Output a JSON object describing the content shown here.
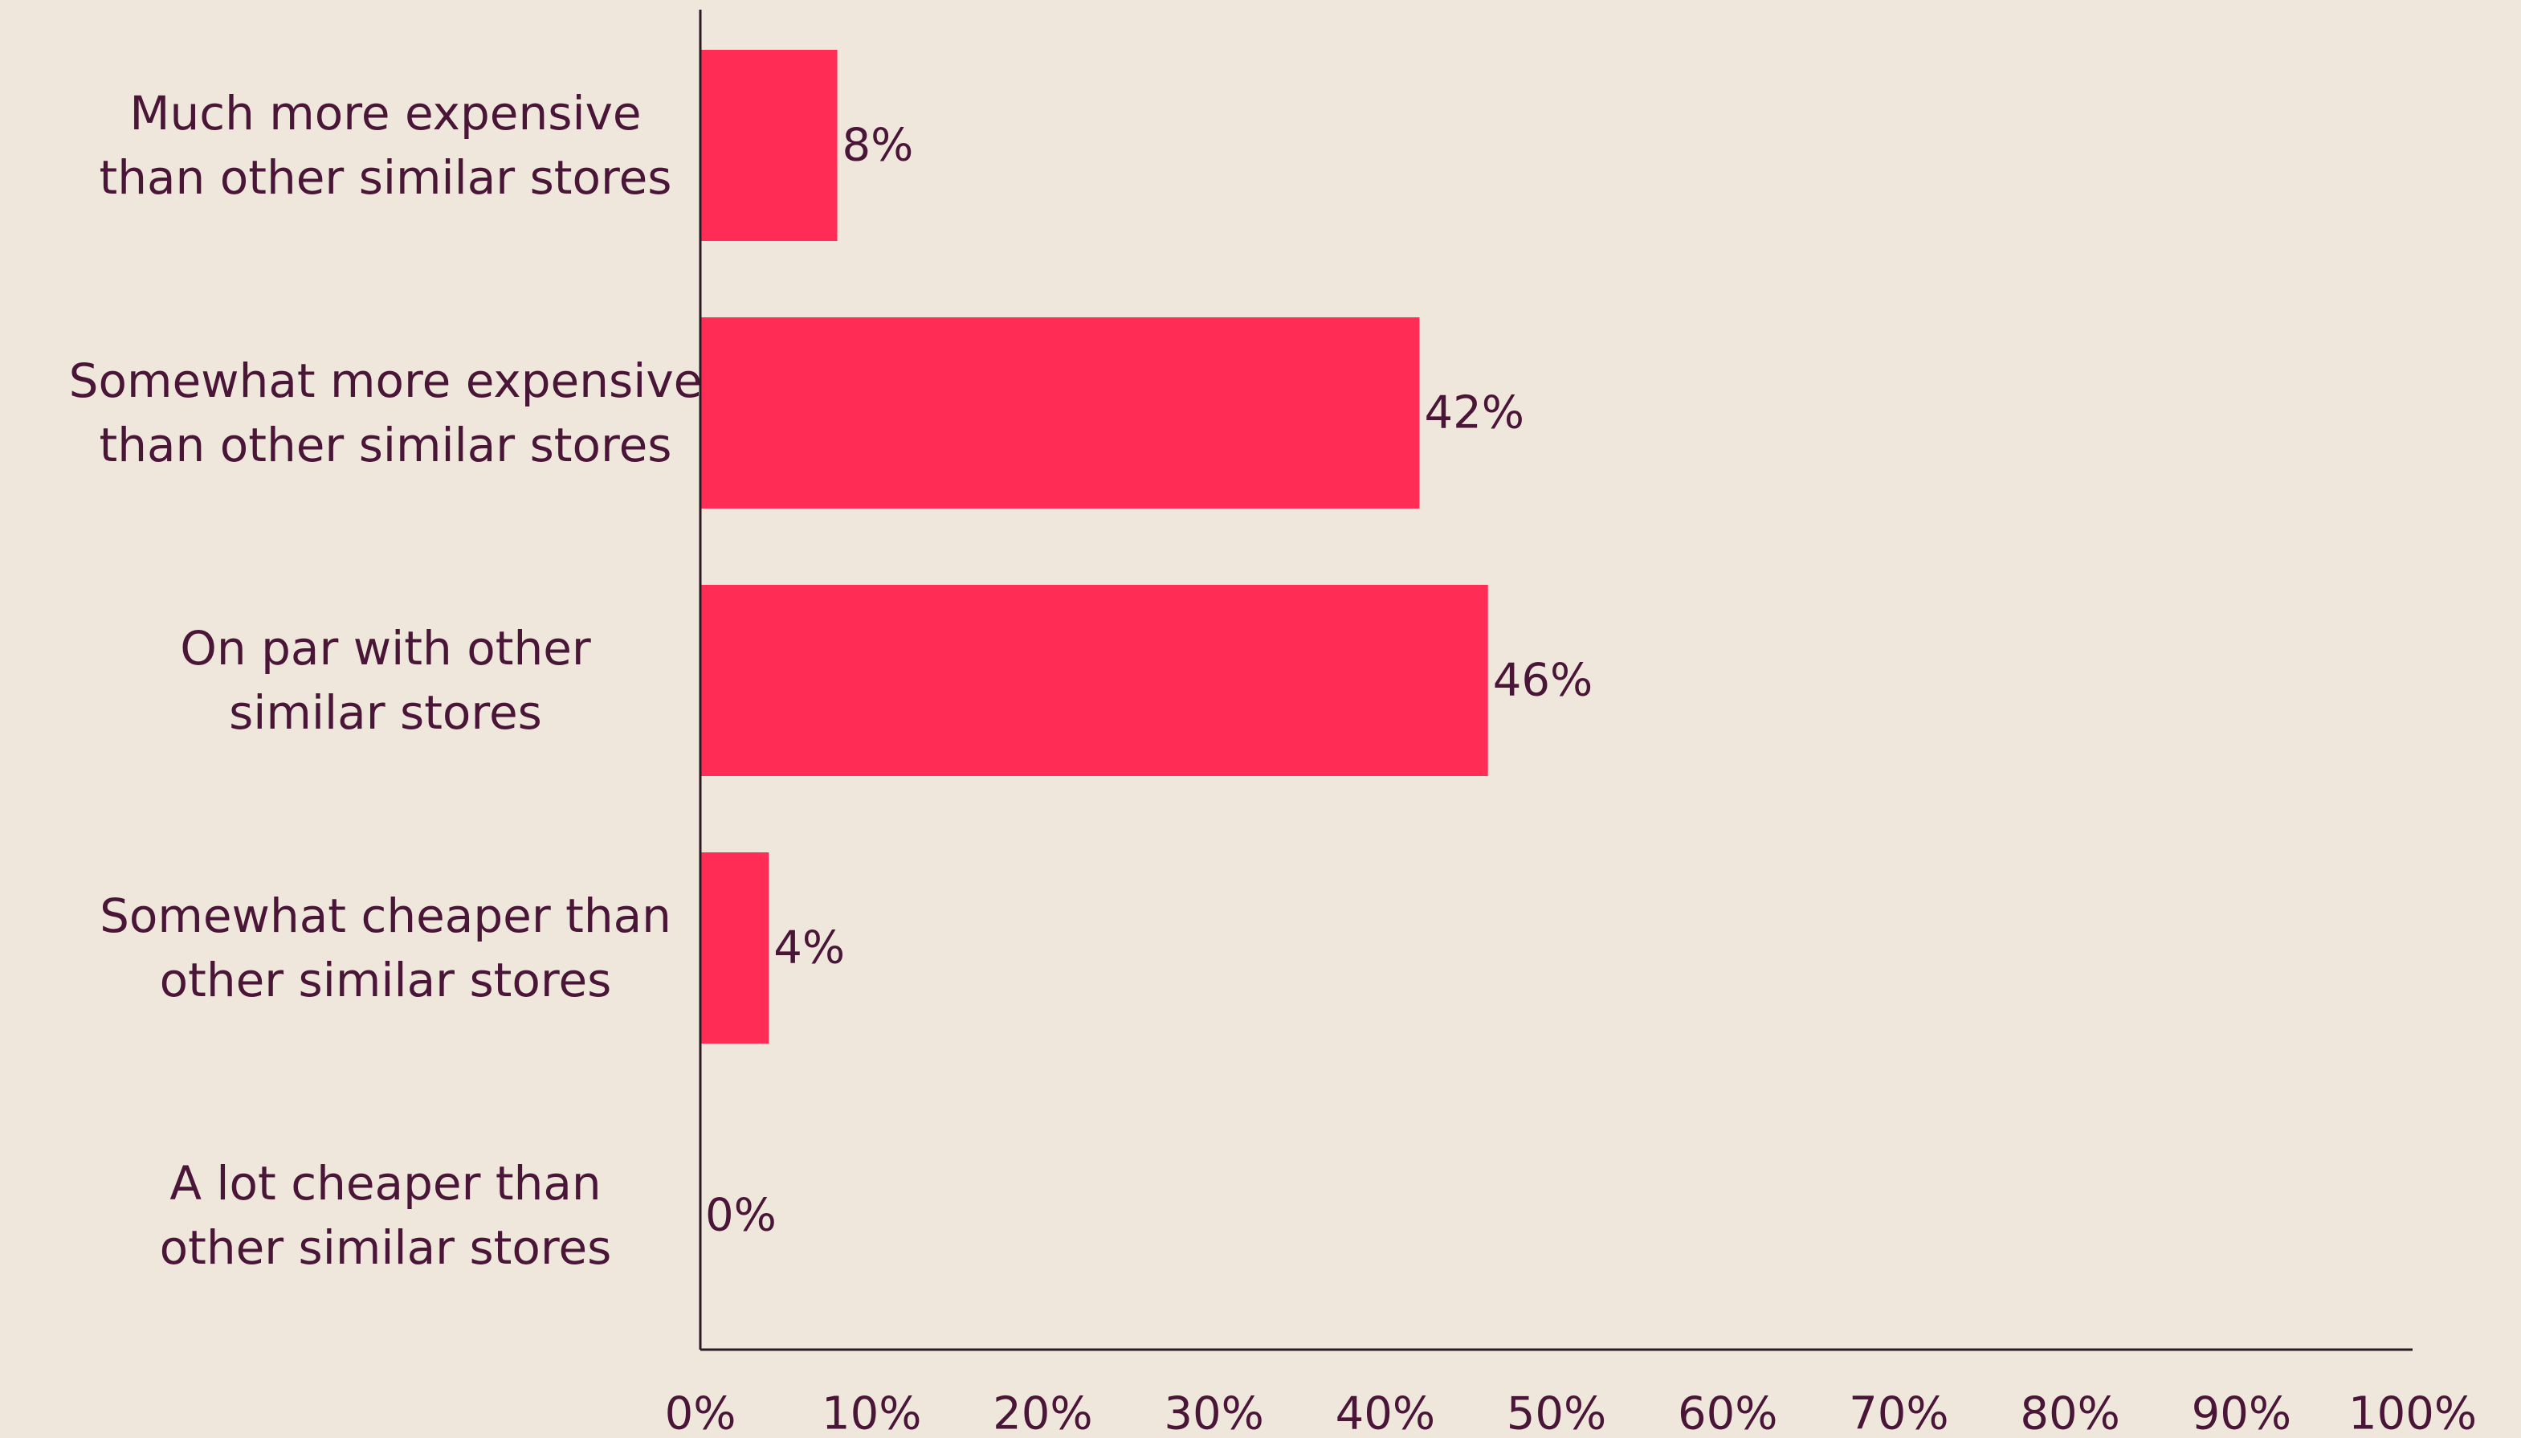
{
  "chart_data": {
    "type": "bar",
    "orientation": "horizontal",
    "categories": [
      [
        "Much more expensive",
        "than other similar stores"
      ],
      [
        "Somewhat more expensive",
        "than other similar stores"
      ],
      [
        "On par with other",
        "similar stores"
      ],
      [
        "Somewhat cheaper than",
        "other similar stores"
      ],
      [
        "A lot cheaper than",
        "other similar stores"
      ]
    ],
    "values": [
      8,
      42,
      46,
      4,
      0
    ],
    "value_labels": [
      "8%",
      "42%",
      "46%",
      "4%",
      "0%"
    ],
    "title": "",
    "xlabel": "",
    "ylabel": "",
    "xlim": [
      0,
      100
    ],
    "x_ticks": [
      "0%",
      "10%",
      "20%",
      "30%",
      "40%",
      "50%",
      "60%",
      "70%",
      "80%",
      "90%",
      "100%"
    ],
    "grid": false,
    "legend": "none",
    "bar_color": "#FF2D55",
    "text_color": "#4A1638",
    "background_color": "#EFE6DC"
  }
}
